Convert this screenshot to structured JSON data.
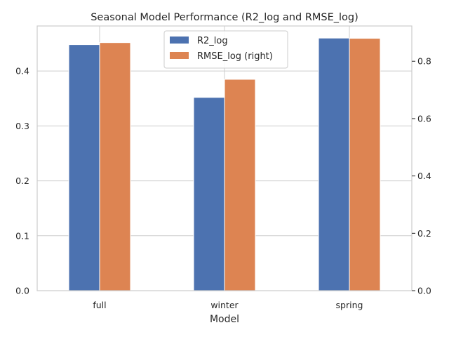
{
  "chart_data": {
    "type": "bar",
    "title": "Seasonal Model Performance (R2_log and RMSE_log)",
    "xlabel": "Model",
    "ylabel": "",
    "ylabel_right": "",
    "categories": [
      "full",
      "winter",
      "spring"
    ],
    "series": [
      {
        "name": "R2_log",
        "axis": "left",
        "color": "#4c72b0",
        "values": [
          0.448,
          0.352,
          0.46
        ]
      },
      {
        "name": "RMSE_log (right)",
        "axis": "right",
        "color": "#dd8452",
        "values": [
          0.865,
          0.737,
          0.88
        ]
      }
    ],
    "ylim": [
      0,
      0.482
    ],
    "ylim_right": [
      0,
      0.923
    ],
    "yticks": [
      "0.0",
      "0.1",
      "0.2",
      "0.3",
      "0.4"
    ],
    "yticks_right": [
      "0.0",
      "0.2",
      "0.4",
      "0.6",
      "0.8"
    ],
    "grid": true,
    "legend_position": "top-center"
  }
}
